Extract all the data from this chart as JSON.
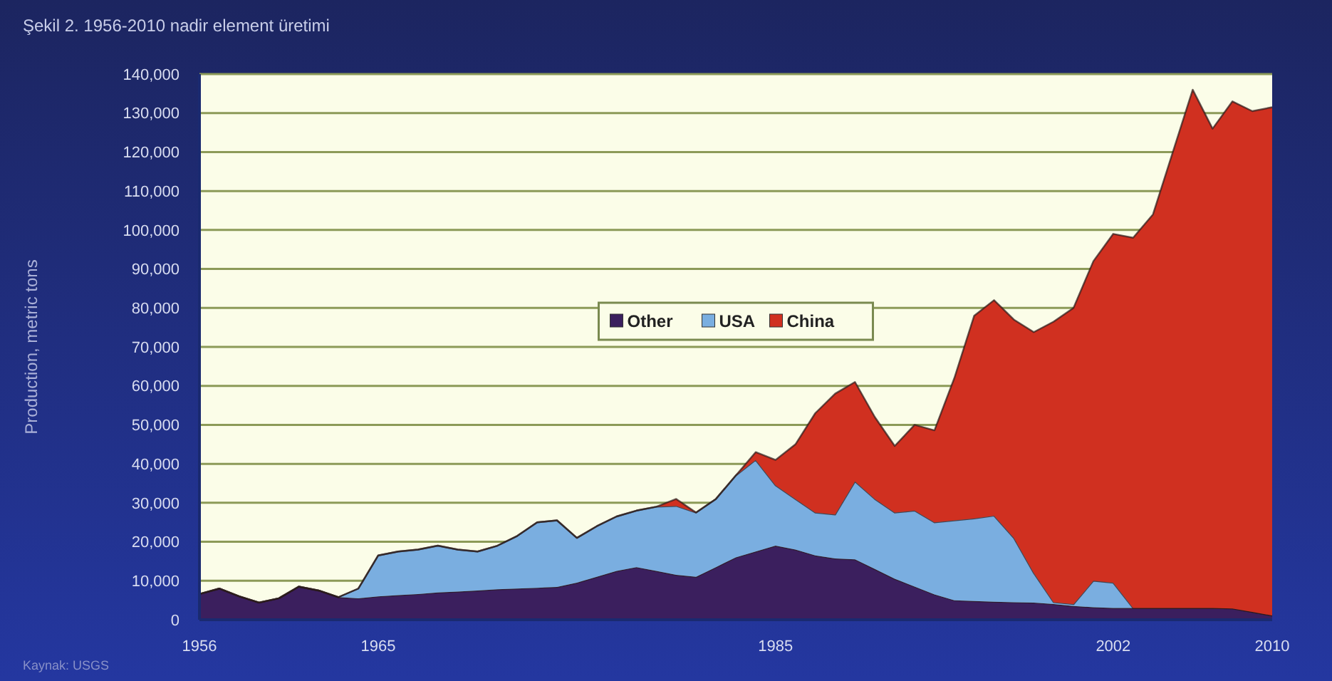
{
  "chart_data": {
    "type": "area",
    "stacked": true,
    "title": "Şekil 2. 1956-2010 nadir element üretimi",
    "ylabel": "Production, metric tons",
    "annotations": [
      "Kaynak: USGS"
    ],
    "x": [
      1956,
      1957,
      1958,
      1959,
      1960,
      1961,
      1962,
      1963,
      1964,
      1965,
      1966,
      1967,
      1968,
      1969,
      1970,
      1971,
      1972,
      1973,
      1974,
      1975,
      1976,
      1977,
      1978,
      1979,
      1980,
      1981,
      1982,
      1983,
      1984,
      1985,
      1986,
      1987,
      1988,
      1989,
      1990,
      1991,
      1992,
      1993,
      1994,
      1995,
      1996,
      1997,
      1998,
      1999,
      2000,
      2001,
      2002,
      2003,
      2004,
      2005,
      2006,
      2007,
      2008,
      2009,
      2010
    ],
    "series": [
      {
        "name": "Other",
        "color": "#3b1f5e",
        "values": [
          6600,
          8000,
          6000,
          4400,
          5500,
          8500,
          7500,
          5800,
          5500,
          6000,
          6300,
          6600,
          7000,
          7200,
          7500,
          7800,
          8000,
          8200,
          8400,
          9500,
          11000,
          12500,
          13500,
          12500,
          11500,
          11000,
          13500,
          16000,
          17500,
          19000,
          18000,
          16500,
          15700,
          15500,
          13000,
          10500,
          8500,
          6500,
          5000,
          4800,
          4600,
          4500,
          4400,
          4000,
          3500,
          3200,
          3000,
          3000,
          3000,
          3000,
          3000,
          3000,
          2900,
          2000,
          1100
        ]
      },
      {
        "name": "USA",
        "color": "#7aaee0",
        "values": [
          0,
          0,
          0,
          0,
          0,
          0,
          0,
          0,
          2500,
          10500,
          11200,
          11400,
          12000,
          10800,
          10000,
          11200,
          13500,
          16800,
          17100,
          11500,
          13000,
          14000,
          14500,
          16500,
          17700,
          16500,
          17500,
          21000,
          23500,
          15500,
          13000,
          11000,
          11300,
          20000,
          18000,
          17000,
          19500,
          18500,
          20500,
          21200,
          22100,
          16500,
          7600,
          500,
          500,
          6800,
          6500,
          0,
          0,
          0,
          0,
          0,
          0,
          0,
          0
        ]
      },
      {
        "name": "China",
        "color": "#d03020",
        "values": [
          0,
          0,
          0,
          0,
          0,
          0,
          0,
          0,
          0,
          0,
          0,
          0,
          0,
          0,
          0,
          0,
          0,
          0,
          0,
          0,
          0,
          0,
          0,
          0,
          1800,
          0,
          0,
          0,
          2000,
          6500,
          14000,
          25500,
          31000,
          25500,
          21000,
          17100,
          22000,
          23600,
          36500,
          52000,
          55300,
          56000,
          61800,
          72000,
          76000,
          82000,
          89500,
          95000,
          101000,
          117000,
          133000,
          123000,
          130100,
          128500,
          130400
        ]
      }
    ],
    "xlim": [
      1956,
      2010
    ],
    "xticks": [
      1956,
      1965,
      1985,
      2002,
      2010
    ],
    "ylim": [
      0,
      140000
    ],
    "yticks": [
      0,
      {
        "value": 10000,
        "label": "10,000"
      },
      {
        "value": 20000,
        "label": "20,000"
      },
      {
        "value": 30000,
        "label": "30,000"
      },
      {
        "value": 40000,
        "label": "40,000"
      },
      {
        "value": 50000,
        "label": "50,000"
      },
      {
        "value": 60000,
        "label": "60,000"
      },
      {
        "value": 70000,
        "label": "70,000"
      },
      {
        "value": 80000,
        "label": "80,000"
      },
      {
        "value": 90000,
        "label": "90,000"
      },
      {
        "value": 100000,
        "label": "100,000"
      },
      {
        "value": 110000,
        "label": "110,000"
      },
      {
        "value": 120000,
        "label": "120,000"
      },
      {
        "value": 130000,
        "label": "130,000"
      },
      {
        "value": 140000,
        "label": "140,000"
      }
    ],
    "grid": "y",
    "legend": "center"
  }
}
